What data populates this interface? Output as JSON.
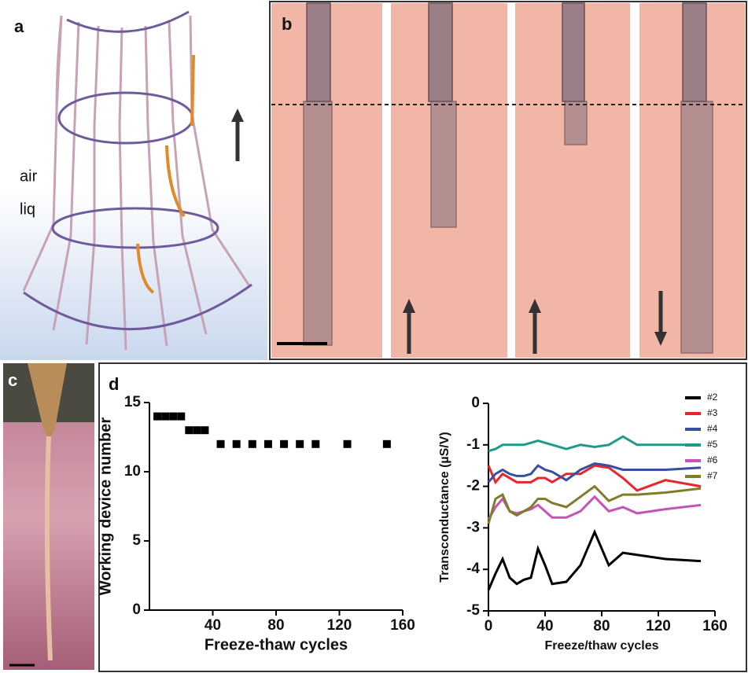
{
  "figure": {
    "panel_labels": [
      "a",
      "b",
      "c",
      "d"
    ],
    "annotations": [
      "air",
      "liq"
    ]
  },
  "chart_data": [
    {
      "type": "scatter",
      "xlabel": "Freeze-thaw cycles",
      "ylabel": "Working device number",
      "x": [
        5,
        10,
        15,
        20,
        25,
        30,
        35,
        45,
        55,
        65,
        75,
        85,
        95,
        105,
        125,
        150
      ],
      "values": [
        14,
        14,
        14,
        14,
        13,
        13,
        13,
        12,
        12,
        12,
        12,
        12,
        12,
        12,
        12,
        12
      ],
      "color": "#000000",
      "xlim": [
        0,
        160
      ],
      "xticks": [
        40,
        80,
        120,
        160
      ],
      "ylim": [
        0,
        15
      ],
      "yticks": [
        0,
        5,
        10,
        15
      ]
    },
    {
      "type": "line",
      "xlabel": "Freeze/thaw cycles",
      "ylabel": "Transconductance (µS/V)",
      "x": [
        0,
        5,
        10,
        15,
        20,
        25,
        30,
        35,
        40,
        45,
        55,
        65,
        75,
        85,
        95,
        105,
        125,
        150
      ],
      "series": [
        {
          "name": "#2",
          "color": "#000000",
          "values": [
            -4.5,
            -4.1,
            -3.75,
            -4.2,
            -4.35,
            -4.25,
            -4.2,
            -3.5,
            -3.9,
            -4.35,
            -4.3,
            -3.9,
            -3.1,
            -3.9,
            -3.6,
            -3.65,
            -3.75,
            -3.8
          ]
        },
        {
          "name": "#3",
          "color": "#e8262b",
          "values": [
            -1.5,
            -1.9,
            -1.7,
            -1.8,
            -1.9,
            -1.9,
            -1.9,
            -1.8,
            -1.8,
            -1.9,
            -1.7,
            -1.7,
            -1.5,
            -1.55,
            -1.8,
            -2.1,
            -1.85,
            -2.0
          ]
        },
        {
          "name": "#4",
          "color": "#3a4fa0",
          "values": [
            -1.9,
            -1.7,
            -1.6,
            -1.7,
            -1.75,
            -1.75,
            -1.7,
            -1.5,
            -1.6,
            -1.65,
            -1.85,
            -1.6,
            -1.45,
            -1.5,
            -1.6,
            -1.6,
            -1.6,
            -1.55
          ]
        },
        {
          "name": "#5",
          "color": "#1f9a8a",
          "values": [
            -1.15,
            -1.1,
            -1.0,
            -1.0,
            -1.0,
            -1.0,
            -0.95,
            -0.9,
            -0.95,
            -1.0,
            -1.1,
            -1.0,
            -1.05,
            -1.0,
            -0.8,
            -1.0,
            -1.0,
            -1.0
          ]
        },
        {
          "name": "#6",
          "color": "#c554b8",
          "values": [
            -2.8,
            -2.5,
            -2.3,
            -2.6,
            -2.65,
            -2.6,
            -2.55,
            -2.45,
            -2.6,
            -2.75,
            -2.75,
            -2.6,
            -2.25,
            -2.6,
            -2.5,
            -2.65,
            -2.55,
            -2.45
          ]
        },
        {
          "name": "#7",
          "color": "#7f7d2a",
          "values": [
            -2.9,
            -2.3,
            -2.2,
            -2.6,
            -2.7,
            -2.6,
            -2.5,
            -2.3,
            -2.3,
            -2.4,
            -2.5,
            -2.25,
            -2.0,
            -2.35,
            -2.2,
            -2.2,
            -2.15,
            -2.05
          ]
        }
      ],
      "xlim": [
        0,
        160
      ],
      "xticks": [
        0,
        40,
        80,
        120,
        160
      ],
      "ylim": [
        -5,
        0
      ],
      "yticks": [
        0,
        -1,
        -2,
        -3,
        -4,
        -5
      ]
    }
  ]
}
